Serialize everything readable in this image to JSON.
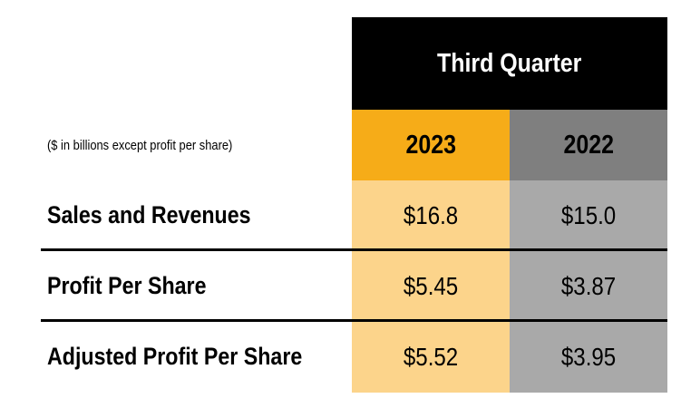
{
  "header": {
    "period": "Third Quarter",
    "years": [
      "2023",
      "2022"
    ]
  },
  "note": "($ in billions except profit per share)",
  "rows": [
    {
      "label": "Sales and Revenues",
      "values": [
        "$16.8",
        "$15.0"
      ]
    },
    {
      "label": "Profit Per Share",
      "values": [
        "$5.45",
        "$3.87"
      ]
    },
    {
      "label": "Adjusted Profit Per Share",
      "values": [
        "$5.52",
        "$3.95"
      ]
    }
  ],
  "colors": {
    "header_bg": "#000000",
    "year_current_bg": "#f6ac18",
    "year_prior_bg": "#7f7f7f",
    "current_cell_bg": "#fcd48b",
    "prior_cell_bg": "#a9a9a9"
  }
}
